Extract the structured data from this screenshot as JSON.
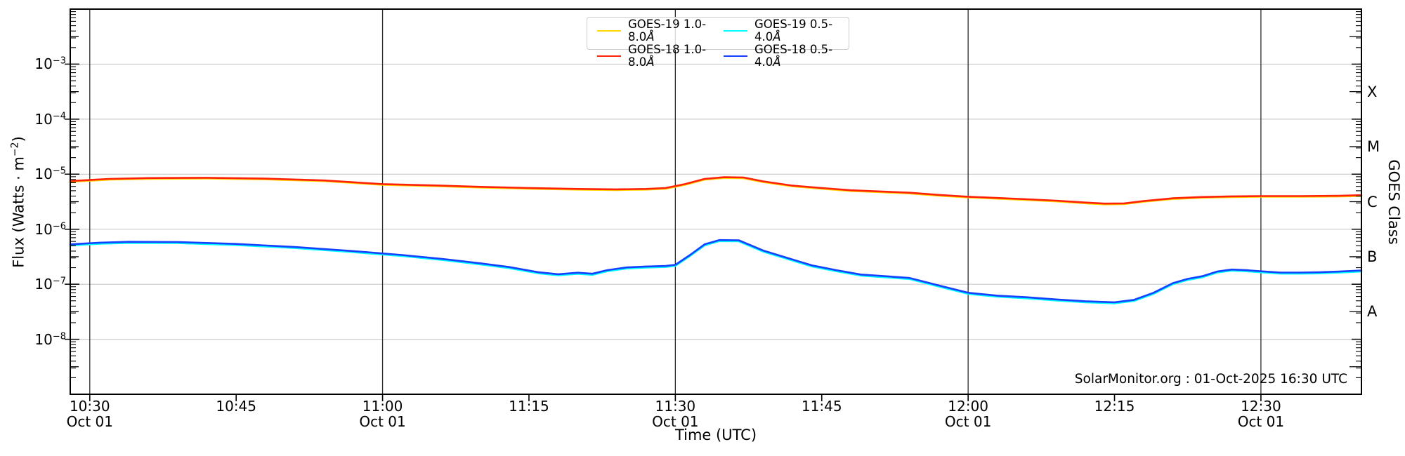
{
  "annotation": "SolarMonitor.org : 01-Oct-2025 16:30 UTC",
  "axes": {
    "x_label": "Time (UTC)",
    "y_label_prefix": "Flux (Watts · m",
    "y_label_sup": "−2",
    "y_label_suffix": ")",
    "y_right_label": "GOES Class",
    "x_ticks": [
      {
        "time": "10:30",
        "date": "Oct 01",
        "minutes": 630
      },
      {
        "time": "10:45",
        "minutes": 645
      },
      {
        "time": "11:00",
        "date": "Oct 01",
        "minutes": 660
      },
      {
        "time": "11:15",
        "minutes": 675
      },
      {
        "time": "11:30",
        "date": "Oct 01",
        "minutes": 690
      },
      {
        "time": "11:45",
        "minutes": 705
      },
      {
        "time": "12:00",
        "date": "Oct 01",
        "minutes": 720
      },
      {
        "time": "12:15",
        "minutes": 735
      },
      {
        "time": "12:30",
        "date": "Oct 01",
        "minutes": 750
      }
    ],
    "y_tick_exponents": [
      -3,
      -4,
      -5,
      -6,
      -7,
      -8
    ],
    "goes_class_labels": [
      {
        "label": "X",
        "exponent": -3.5
      },
      {
        "label": "M",
        "exponent": -4.5
      },
      {
        "label": "C",
        "exponent": -5.5
      },
      {
        "label": "B",
        "exponent": -6.5
      },
      {
        "label": "A",
        "exponent": -7.5
      }
    ]
  },
  "legend": {
    "items": [
      {
        "label": "GOES-19 1.0-8.0",
        "unit": "Å",
        "color": "#ffd700"
      },
      {
        "label": "GOES-19 0.5-4.0",
        "unit": "Å",
        "color": "#00ffff"
      },
      {
        "label": "GOES-18 1.0-8.0",
        "unit": "Å",
        "color": "#ff2208"
      },
      {
        "label": "GOES-18 0.5-4.0",
        "unit": "Å",
        "color": "#1440ff"
      }
    ]
  },
  "colors": {
    "grid": "#c9c9c9",
    "major_vline": "#2a2a2a",
    "axis": "#000000",
    "background": "#ffffff"
  },
  "chart_data": {
    "type": "line",
    "title": "",
    "xlabel": "Time (UTC)",
    "ylabel": "Flux (Watts · m−2)",
    "y_scale": "log",
    "ylim": [
      1e-09,
      0.01
    ],
    "x_range_minutes": [
      628,
      760.3
    ],
    "x_window": "01-Oct-2025 10:28 to 12:40 UTC",
    "legend_position": "top-center",
    "grid": "horizontal decades + vertical 30-min lines",
    "series": [
      {
        "name": "GOES-19 1.0-8.0Å",
        "color": "#ffd700",
        "overlaps": "GOES-18 1.0-8.0Å",
        "overlap_factor": 0.97
      },
      {
        "name": "GOES-18 1.0-8.0Å",
        "color": "#ff2208",
        "x_minutes": [
          628,
          632,
          636,
          642,
          648,
          654,
          660,
          666,
          670,
          675,
          680,
          684,
          687,
          689,
          691,
          693,
          695,
          697,
          699,
          702,
          705,
          708,
          711,
          714,
          717,
          720,
          723,
          726,
          729,
          732,
          734,
          736,
          738,
          741,
          744,
          747,
          750,
          754,
          758,
          760.3
        ],
        "flux": [
          7.5e-06,
          8.2e-06,
          8.5e-06,
          8.6e-06,
          8.3e-06,
          7.7e-06,
          6.6e-06,
          6.2e-06,
          5.9e-06,
          5.6e-06,
          5.4e-06,
          5.3e-06,
          5.4e-06,
          5.6e-06,
          6.6e-06,
          8.2e-06,
          8.8e-06,
          8.7e-06,
          7.4e-06,
          6.2e-06,
          5.6e-06,
          5.1e-06,
          4.85e-06,
          4.6e-06,
          4.2e-06,
          3.9e-06,
          3.7e-06,
          3.5e-06,
          3.3e-06,
          3.05e-06,
          2.92e-06,
          2.95e-06,
          3.25e-06,
          3.65e-06,
          3.85e-06,
          3.95e-06,
          4e-06,
          4e-06,
          4.05e-06,
          4.15e-06
        ]
      },
      {
        "name": "GOES-19 0.5-4.0Å",
        "color": "#00ffff",
        "overlaps": "GOES-18 0.5-4.0Å",
        "overlap_factor": 0.955
      },
      {
        "name": "GOES-18 0.5-4.0Å",
        "color": "#1440ff",
        "x_minutes": [
          628,
          631,
          634,
          639,
          645,
          651,
          657,
          662,
          666,
          670,
          673,
          676,
          678,
          680,
          681.5,
          683,
          685,
          687,
          689,
          690,
          691.5,
          693,
          694.5,
          696.5,
          699,
          701.5,
          704,
          706.5,
          709,
          711.5,
          714,
          717,
          720,
          723,
          726,
          729,
          732,
          735,
          737,
          739,
          741,
          742.5,
          744,
          745.5,
          747,
          748.5,
          750,
          752,
          754,
          756,
          758,
          760.3
        ],
        "flux": [
          5.3e-07,
          5.7e-07,
          5.9e-07,
          5.85e-07,
          5.4e-07,
          4.75e-07,
          4e-07,
          3.4e-07,
          2.9e-07,
          2.4e-07,
          2.05e-07,
          1.65e-07,
          1.52e-07,
          1.62e-07,
          1.55e-07,
          1.8e-07,
          2.02e-07,
          2.1e-07,
          2.15e-07,
          2.25e-07,
          3.4e-07,
          5.3e-07,
          6.35e-07,
          6.3e-07,
          4.1e-07,
          3e-07,
          2.2e-07,
          1.8e-07,
          1.5e-07,
          1.4e-07,
          1.3e-07,
          9.5e-08,
          7e-08,
          6.2e-08,
          5.8e-08,
          5.3e-08,
          4.9e-08,
          4.7e-08,
          5.2e-08,
          7e-08,
          1.05e-07,
          1.25e-07,
          1.4e-07,
          1.7e-07,
          1.85e-07,
          1.8e-07,
          1.72e-07,
          1.63e-07,
          1.63e-07,
          1.65e-07,
          1.7e-07,
          1.78e-07
        ]
      }
    ]
  }
}
